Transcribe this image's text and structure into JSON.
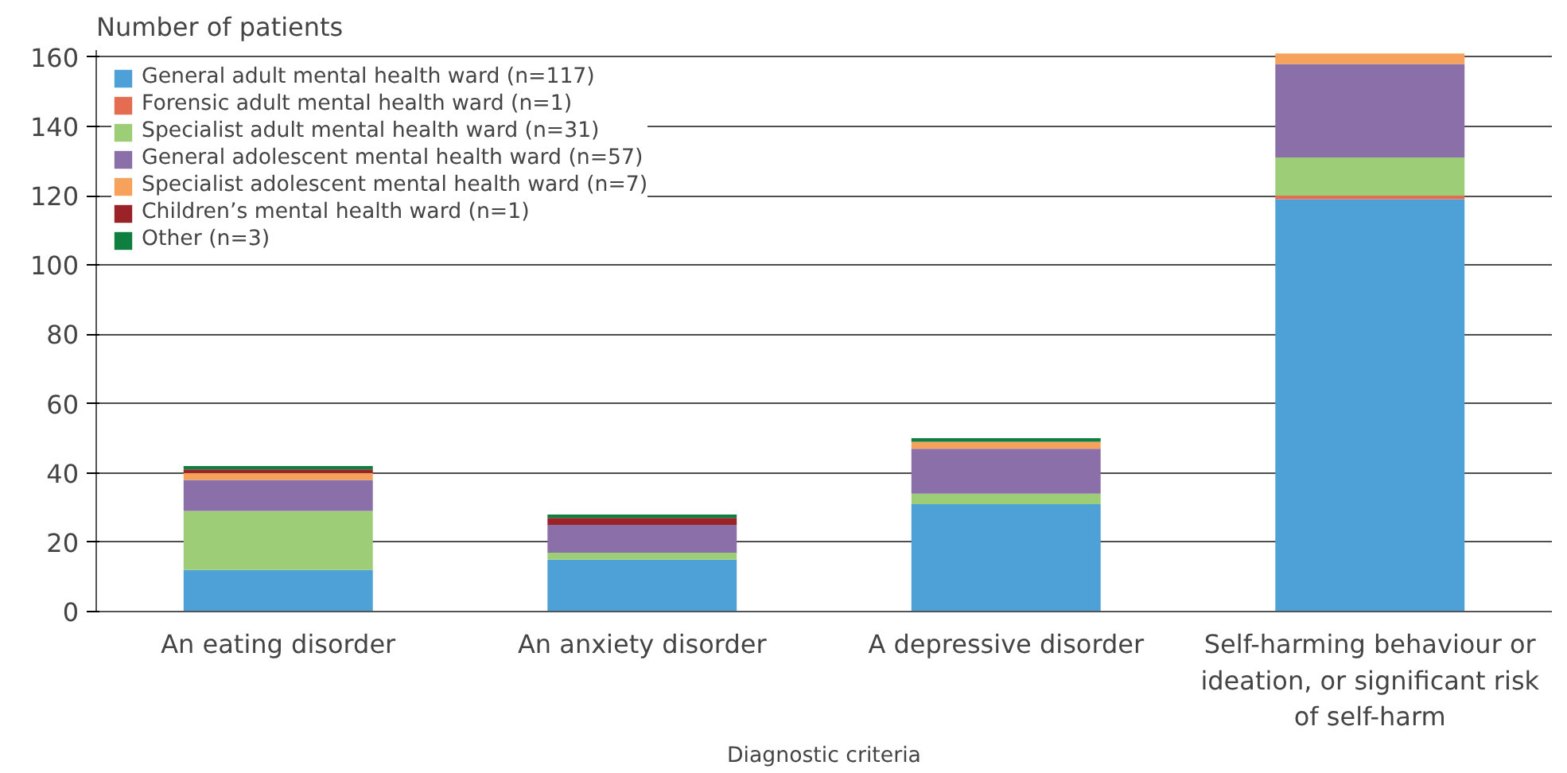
{
  "chart_data": {
    "type": "bar",
    "stacked": true,
    "categories": [
      "An eating disorder",
      "An anxiety disorder",
      "A depressive disorder",
      "Self-harming behaviour or\nideation, or significant risk\nof self-harm"
    ],
    "series": [
      {
        "name": "General adult mental health ward (n=117)",
        "color": "#4ea1d6",
        "values": [
          12,
          15,
          31,
          119
        ]
      },
      {
        "name": "Forensic adult mental health ward (n=1)",
        "color": "#e46c50",
        "values": [
          0,
          0,
          0,
          1
        ]
      },
      {
        "name": "Specialist adult mental health ward (n=31)",
        "color": "#9dce77",
        "values": [
          17,
          2,
          3,
          11
        ]
      },
      {
        "name": "General adolescent mental health ward (n=57)",
        "color": "#8a6fa8",
        "values": [
          9,
          8,
          13,
          27
        ]
      },
      {
        "name": "Specialist adolescent mental health ward (n=7)",
        "color": "#f6a25d",
        "values": [
          2,
          0,
          2,
          3
        ]
      },
      {
        "name": "Children’s mental health ward (n=1)",
        "color": "#9b2226",
        "values": [
          1,
          2,
          0,
          0
        ]
      },
      {
        "name": "Other (n=3)",
        "color": "#0f7f3f",
        "values": [
          1,
          1,
          1,
          0
        ]
      }
    ],
    "ylabel": "Number of patients",
    "xlabel": "Diagnostic criteria",
    "ylim": [
      0,
      162
    ],
    "yticks": [
      0,
      20,
      40,
      60,
      80,
      100,
      120,
      140,
      160
    ],
    "grid": "y",
    "legend": "top left"
  }
}
